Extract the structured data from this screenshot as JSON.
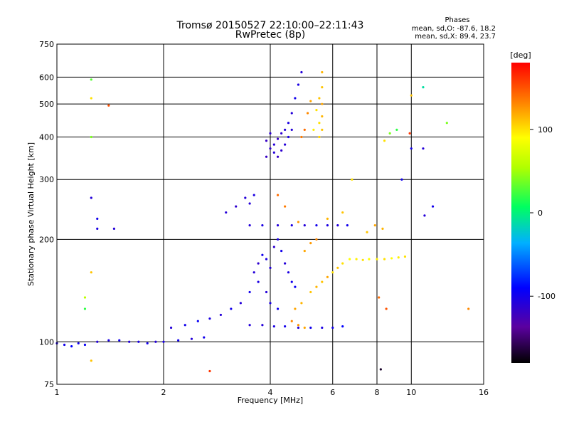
{
  "chart_data": {
    "type": "scatter",
    "title": "Tromsø 20150527 22:10:00–22:11:43",
    "subtitle": "RwPretec (8p)",
    "xlabel": "Frequency [MHz]",
    "ylabel": "Stationary phase Virtual Height [km]",
    "x_scale": "log",
    "y_scale": "log",
    "xlim": [
      1,
      16
    ],
    "ylim": [
      75,
      750
    ],
    "x_ticks": [
      1,
      2,
      4,
      6,
      8,
      10,
      16
    ],
    "x_tick_labels": [
      "1",
      "2",
      "4",
      "6",
      "8",
      "10",
      "16"
    ],
    "y_ticks": [
      75,
      100,
      200,
      300,
      400,
      500,
      600,
      750
    ],
    "y_tick_labels": [
      "75",
      "100",
      "200",
      "300",
      "400",
      "500",
      "600",
      "750"
    ],
    "grid": true,
    "phase_info": {
      "header": "Phases",
      "line1": "mean, sd,O: -87.6, 18.2",
      "line2": "mean, sd,X:  89.4, 23.7"
    },
    "colorbar": {
      "label": "[deg]",
      "range": [
        -180,
        180
      ],
      "ticks": [
        100,
        0,
        -100
      ],
      "tick_labels": [
        "100",
        "0",
        "-100"
      ]
    },
    "series": [
      {
        "points": [
          [
            1.0,
            99,
            -105
          ],
          [
            1.05,
            98,
            -100
          ],
          [
            1.1,
            97,
            -90
          ],
          [
            1.15,
            99,
            -100
          ],
          [
            1.2,
            98,
            -95
          ],
          [
            1.3,
            100,
            -110
          ],
          [
            1.4,
            101,
            -105
          ],
          [
            1.5,
            101,
            -100
          ],
          [
            1.6,
            100,
            -110
          ],
          [
            1.7,
            100,
            -105
          ],
          [
            1.8,
            99,
            -100
          ],
          [
            1.9,
            100,
            -110
          ],
          [
            2.0,
            100,
            -105
          ],
          [
            2.2,
            101,
            -100
          ],
          [
            2.4,
            102,
            -110
          ],
          [
            2.6,
            103,
            -100
          ],
          [
            2.1,
            110,
            -110
          ],
          [
            2.3,
            112,
            -100
          ],
          [
            2.5,
            115,
            -95
          ],
          [
            2.7,
            117,
            -105
          ],
          [
            2.9,
            120,
            -110
          ],
          [
            3.1,
            125,
            -100
          ],
          [
            3.3,
            130,
            -110
          ],
          [
            3.5,
            140,
            -100
          ],
          [
            3.7,
            150,
            -105
          ],
          [
            3.5,
            112,
            -110
          ],
          [
            3.8,
            112,
            -110
          ],
          [
            4.1,
            111,
            -105
          ],
          [
            4.4,
            111,
            -100
          ],
          [
            4.8,
            110,
            -110
          ],
          [
            5.2,
            110,
            -100
          ],
          [
            5.6,
            110,
            -105
          ],
          [
            6.0,
            110,
            -100
          ],
          [
            6.4,
            111,
            -90
          ],
          [
            3.6,
            160,
            -110
          ],
          [
            3.7,
            170,
            -115
          ],
          [
            3.8,
            180,
            -100
          ],
          [
            3.9,
            175,
            -105
          ],
          [
            4.0,
            165,
            -110
          ],
          [
            4.1,
            190,
            -115
          ],
          [
            4.2,
            200,
            -105
          ],
          [
            4.3,
            185,
            -100
          ],
          [
            4.4,
            170,
            -110
          ],
          [
            4.5,
            160,
            -105
          ],
          [
            4.6,
            150,
            -100
          ],
          [
            4.7,
            145,
            -95
          ],
          [
            3.9,
            140,
            -110
          ],
          [
            4.0,
            130,
            -105
          ],
          [
            4.2,
            125,
            -100
          ],
          [
            3.5,
            220,
            -110
          ],
          [
            3.8,
            220,
            -105
          ],
          [
            4.2,
            220,
            -110
          ],
          [
            4.6,
            220,
            -105
          ],
          [
            5.0,
            220,
            -110
          ],
          [
            5.4,
            220,
            -100
          ],
          [
            5.8,
            220,
            -105
          ],
          [
            6.2,
            220,
            -110
          ],
          [
            6.6,
            220,
            -100
          ],
          [
            3.0,
            240,
            -110
          ],
          [
            3.2,
            250,
            -115
          ],
          [
            3.4,
            265,
            -110
          ],
          [
            3.6,
            270,
            -105
          ],
          [
            3.5,
            255,
            -110
          ],
          [
            3.9,
            350,
            -120
          ],
          [
            4.0,
            370,
            -115
          ],
          [
            4.1,
            380,
            -110
          ],
          [
            4.2,
            395,
            -120
          ],
          [
            4.3,
            410,
            -115
          ],
          [
            4.4,
            420,
            -110
          ],
          [
            4.5,
            440,
            -105
          ],
          [
            4.6,
            470,
            -110
          ],
          [
            4.7,
            520,
            -100
          ],
          [
            4.8,
            570,
            -105
          ],
          [
            4.9,
            620,
            -110
          ],
          [
            3.9,
            390,
            -120
          ],
          [
            4.0,
            410,
            -115
          ],
          [
            4.1,
            360,
            -110
          ],
          [
            4.2,
            350,
            -120
          ],
          [
            4.3,
            365,
            -115
          ],
          [
            4.4,
            380,
            -110
          ],
          [
            4.5,
            400,
            -105
          ],
          [
            4.6,
            420,
            -110
          ],
          [
            5.6,
            420,
            110
          ],
          [
            5.6,
            460,
            115
          ],
          [
            5.6,
            500,
            120
          ],
          [
            5.6,
            560,
            110
          ],
          [
            5.6,
            620,
            115
          ],
          [
            5.5,
            400,
            105
          ],
          [
            5.5,
            440,
            100
          ],
          [
            5.5,
            520,
            110
          ],
          [
            5.3,
            420,
            95
          ],
          [
            5.4,
            480,
            100
          ],
          [
            5.0,
            420,
            140
          ],
          [
            5.1,
            470,
            130
          ],
          [
            5.2,
            510,
            120
          ],
          [
            4.9,
            400,
            135
          ],
          [
            4.6,
            115,
            130
          ],
          [
            4.8,
            112,
            125
          ],
          [
            5.0,
            110,
            120
          ],
          [
            4.7,
            125,
            120
          ],
          [
            4.9,
            130,
            115
          ],
          [
            5.2,
            140,
            110
          ],
          [
            5.4,
            145,
            115
          ],
          [
            5.6,
            150,
            110
          ],
          [
            5.8,
            155,
            120
          ],
          [
            6.0,
            160,
            100
          ],
          [
            6.2,
            165,
            110
          ],
          [
            6.4,
            170,
            100
          ],
          [
            6.7,
            175,
            90
          ],
          [
            7.0,
            175,
            95
          ],
          [
            7.3,
            174,
            100
          ],
          [
            7.6,
            175,
            90
          ],
          [
            8.0,
            175,
            95
          ],
          [
            8.4,
            175,
            100
          ],
          [
            8.8,
            176,
            90
          ],
          [
            9.2,
            177,
            95
          ],
          [
            9.6,
            178,
            100
          ],
          [
            7.5,
            210,
            110
          ],
          [
            7.9,
            220,
            120
          ],
          [
            8.3,
            215,
            115
          ],
          [
            5.0,
            185,
            120
          ],
          [
            5.2,
            195,
            125
          ],
          [
            5.4,
            200,
            130
          ],
          [
            4.2,
            270,
            140
          ],
          [
            4.4,
            250,
            135
          ],
          [
            4.8,
            225,
            125
          ],
          [
            5.8,
            230,
            115
          ],
          [
            6.4,
            240,
            110
          ],
          [
            6.8,
            300,
            100
          ],
          [
            1.25,
            590,
            30
          ],
          [
            1.25,
            520,
            100
          ],
          [
            1.25,
            400,
            40
          ],
          [
            1.4,
            495,
            150
          ],
          [
            1.25,
            265,
            -110
          ],
          [
            1.3,
            230,
            -100
          ],
          [
            1.3,
            215,
            -105
          ],
          [
            1.45,
            215,
            -110
          ],
          [
            1.25,
            160,
            110
          ],
          [
            1.2,
            135,
            60
          ],
          [
            1.2,
            125,
            20
          ],
          [
            1.25,
            88,
            110
          ],
          [
            2.7,
            82,
            160
          ],
          [
            8.2,
            83,
            -170
          ],
          [
            8.4,
            390,
            100
          ],
          [
            8.7,
            410,
            40
          ],
          [
            9.1,
            420,
            20
          ],
          [
            9.4,
            300,
            -100
          ],
          [
            10.0,
            530,
            110
          ],
          [
            9.9,
            410,
            160
          ],
          [
            10.0,
            370,
            -100
          ],
          [
            10.8,
            560,
            -10
          ],
          [
            10.8,
            370,
            -110
          ],
          [
            11.5,
            250,
            -100
          ],
          [
            12.6,
            440,
            40
          ],
          [
            14.5,
            125,
            130
          ],
          [
            10.9,
            235,
            -110
          ],
          [
            8.1,
            135,
            140
          ],
          [
            8.5,
            125,
            150
          ]
        ]
      }
    ]
  }
}
